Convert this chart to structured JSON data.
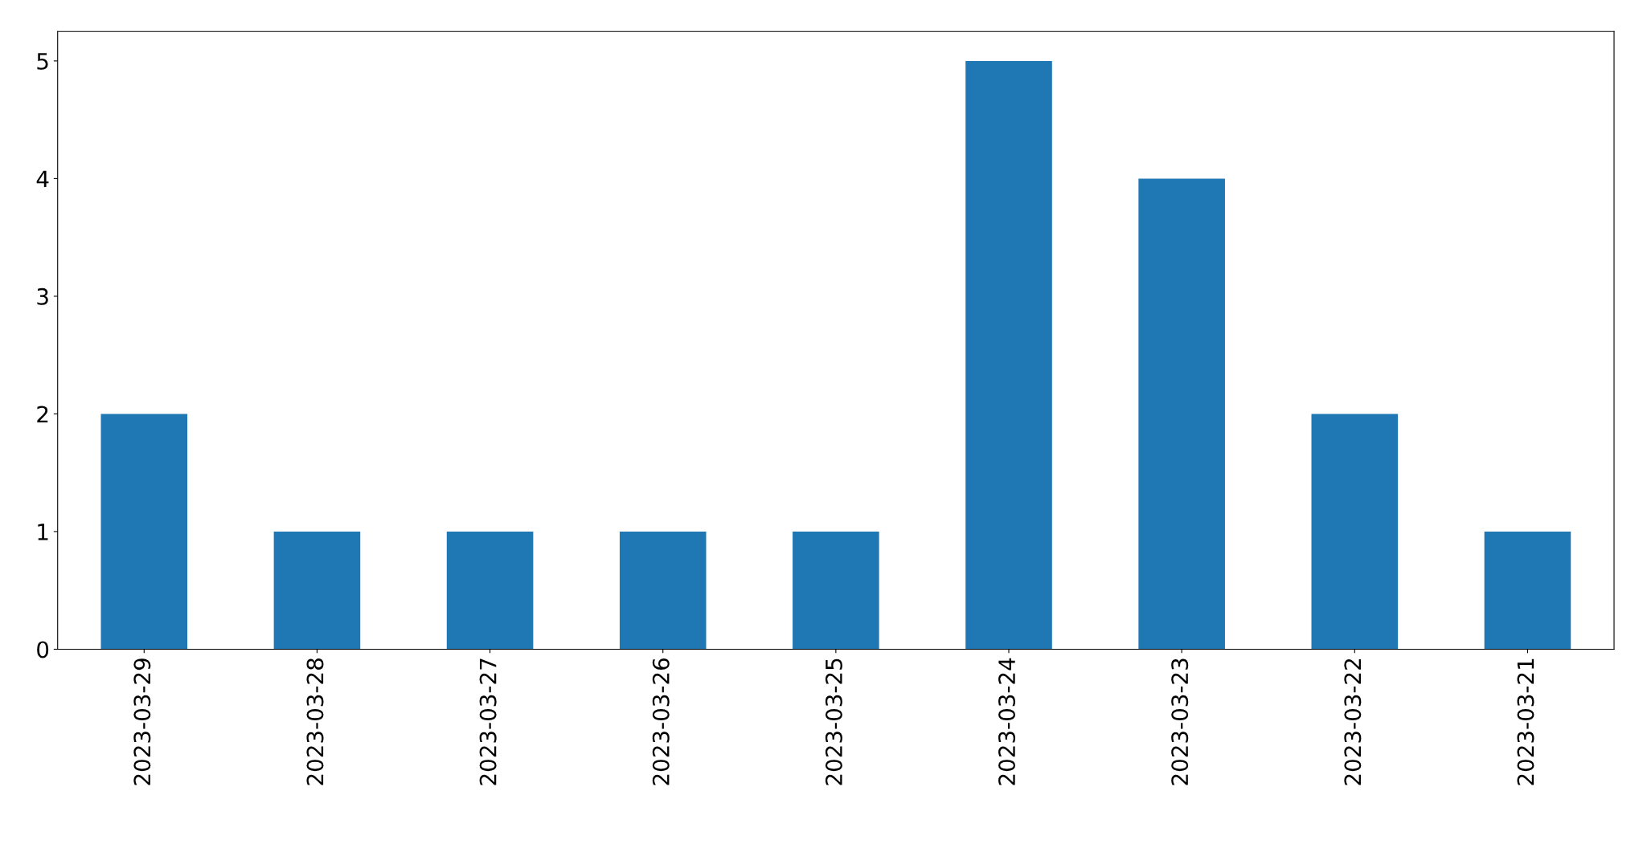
{
  "chart_data": {
    "type": "bar",
    "categories": [
      "2023-03-29",
      "2023-03-28",
      "2023-03-27",
      "2023-03-26",
      "2023-03-25",
      "2023-03-24",
      "2023-03-23",
      "2023-03-22",
      "2023-03-21"
    ],
    "values": [
      2,
      1,
      1,
      1,
      1,
      5,
      4,
      2,
      1
    ],
    "color": "#1f77b4",
    "ylim": [
      0,
      5.25
    ],
    "yticks": [
      0,
      1,
      2,
      3,
      4,
      5
    ],
    "grid": false,
    "legend": false
  }
}
